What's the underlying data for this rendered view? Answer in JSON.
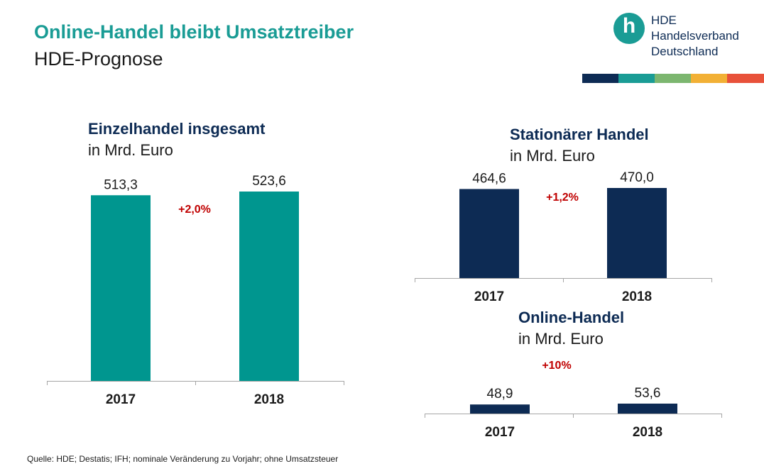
{
  "header": {
    "title": "Online-Handel bleibt Umsatztreiber",
    "subtitle": "HDE-Prognose"
  },
  "logo": {
    "letter": "h",
    "line1": "HDE",
    "line2": "Handelsverband",
    "line3": "Deutschland",
    "stripe_colors": [
      "#0d2b54",
      "#1a9c95",
      "#7cb66f",
      "#f2b035",
      "#e8513a"
    ]
  },
  "chart_data": [
    {
      "type": "bar",
      "title": "Einzelhandel insgesamt",
      "subtitle": "in Mrd. Euro",
      "categories": [
        "2017",
        "2018"
      ],
      "values": [
        513.3,
        523.6
      ],
      "value_labels": [
        "513,3",
        "523,6"
      ],
      "change_label": "+2,0%",
      "color": "#00968f",
      "ylim": [
        0,
        523.6
      ]
    },
    {
      "type": "bar",
      "title": "Stationärer Handel",
      "subtitle": "in Mrd. Euro",
      "categories": [
        "2017",
        "2018"
      ],
      "values": [
        464.6,
        470.0
      ],
      "value_labels": [
        "464,6",
        "470,0"
      ],
      "change_label": "+1,2%",
      "color": "#0d2b54",
      "ylim": [
        0,
        470.0
      ]
    },
    {
      "type": "bar",
      "title": "Online-Handel",
      "subtitle": "in Mrd. Euro",
      "categories": [
        "2017",
        "2018"
      ],
      "values": [
        48.9,
        53.6
      ],
      "value_labels": [
        "48,9",
        "53,6"
      ],
      "change_label": "+10%",
      "color": "#0d2b54",
      "ylim": [
        0,
        53.6
      ]
    }
  ],
  "footnote": "Quelle: HDE; Destatis; IFH; nominale Veränderung zu Vorjahr; ohne Umsatzsteuer",
  "colors": {
    "accent": "#1a9c95",
    "navy": "#0d2b54",
    "change": "#c00000"
  }
}
